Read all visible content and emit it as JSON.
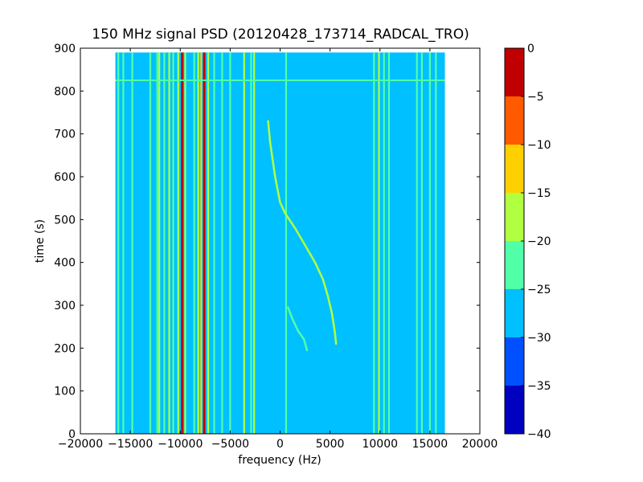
{
  "chart_data": {
    "type": "heatmap",
    "title": "150 MHz signal PSD (20120428_173714_RADCAL_TRO)",
    "xlabel": "frequency (Hz)",
    "ylabel": "time (s)",
    "xlim": [
      -20000,
      20000
    ],
    "ylim": [
      0,
      900
    ],
    "x_ticks": [
      -20000,
      -15000,
      -10000,
      -5000,
      0,
      5000,
      10000,
      15000,
      20000
    ],
    "y_ticks": [
      0,
      100,
      200,
      300,
      400,
      500,
      600,
      700,
      800,
      900
    ],
    "data_extent": {
      "x": [
        -16500,
        16500
      ],
      "y": [
        0,
        890
      ]
    },
    "background_level": -27.5,
    "colorbar": {
      "levels": [
        -40,
        -35,
        -30,
        -25,
        -20,
        -15,
        -10,
        -5,
        0
      ],
      "colors": [
        "#0000c0",
        "#0050ff",
        "#00c0ff",
        "#50ffa8",
        "#b0ff40",
        "#ffd000",
        "#ff5a00",
        "#c00000"
      ]
    },
    "vertical_lines": [
      {
        "x": -16200,
        "level": -22.5
      },
      {
        "x": -15700,
        "level": -22.5
      },
      {
        "x": -14800,
        "level": -22.5
      },
      {
        "x": -13000,
        "level": -22.5
      },
      {
        "x": -12300,
        "level": -22.5
      },
      {
        "x": -12100,
        "level": -17.5
      },
      {
        "x": -11600,
        "level": -22.5
      },
      {
        "x": -11100,
        "level": -17.5
      },
      {
        "x": -10700,
        "level": -22.5
      },
      {
        "x": -10200,
        "level": -17.5
      },
      {
        "x": -9800,
        "level": -2.5
      },
      {
        "x": -9500,
        "level": -17.5
      },
      {
        "x": -8600,
        "level": -22.5
      },
      {
        "x": -8200,
        "level": -17.5
      },
      {
        "x": -7900,
        "level": -12.5
      },
      {
        "x": -7600,
        "level": -2.5
      },
      {
        "x": -7200,
        "level": -17.5
      },
      {
        "x": -6600,
        "level": -22.5
      },
      {
        "x": -5800,
        "level": -22.5
      },
      {
        "x": -5000,
        "level": -22.5
      },
      {
        "x": -3600,
        "level": -17.5
      },
      {
        "x": -2900,
        "level": -22.5
      },
      {
        "x": -2600,
        "level": -17.5
      },
      {
        "x": 600,
        "level": -22.5
      },
      {
        "x": 9400,
        "level": -22.5
      },
      {
        "x": 9900,
        "level": -17.5
      },
      {
        "x": 10400,
        "level": -22.5
      },
      {
        "x": 10900,
        "level": -22.5
      },
      {
        "x": 13700,
        "level": -22.5
      },
      {
        "x": 14200,
        "level": -22.5
      },
      {
        "x": 15000,
        "level": -22.5
      },
      {
        "x": 15600,
        "level": -22.5
      }
    ],
    "horizontal_lines": [
      {
        "y": 825,
        "level": -22.5
      }
    ],
    "curves": [
      {
        "level": -17.5,
        "points": [
          [
            -1200,
            730
          ],
          [
            -1000,
            680
          ],
          [
            -500,
            600
          ],
          [
            0,
            540
          ],
          [
            500,
            515
          ],
          [
            1500,
            480
          ],
          [
            2500,
            440
          ],
          [
            3500,
            400
          ],
          [
            4300,
            360
          ],
          [
            4800,
            320
          ],
          [
            5200,
            280
          ],
          [
            5500,
            235
          ],
          [
            5600,
            210
          ]
        ]
      },
      {
        "level": -22.5,
        "points": [
          [
            800,
            295
          ],
          [
            1200,
            270
          ],
          [
            1800,
            240
          ],
          [
            2400,
            220
          ],
          [
            2700,
            195
          ]
        ]
      }
    ]
  }
}
